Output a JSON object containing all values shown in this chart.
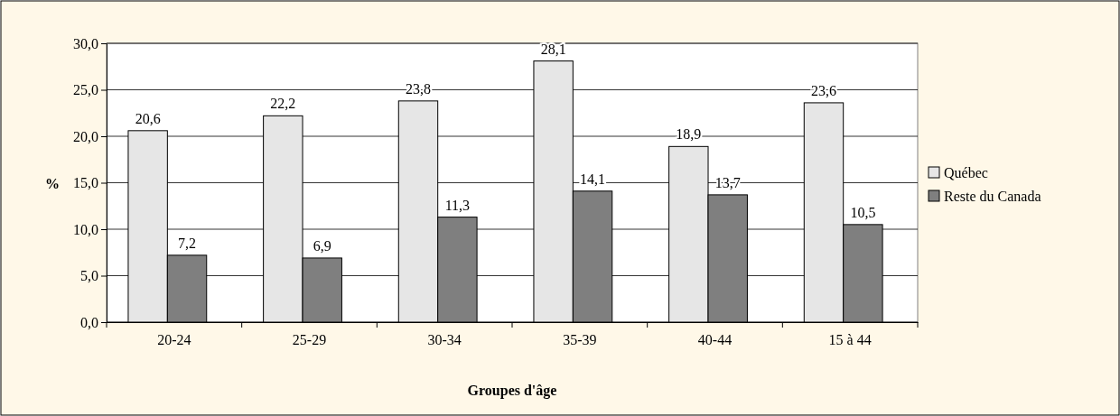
{
  "chart_data": {
    "type": "bar",
    "xlabel": "Groupes d'âge",
    "ylabel": "%",
    "categories": [
      "20-24",
      "25-29",
      "30-34",
      "35-39",
      "40-44",
      "15 à 44"
    ],
    "series": [
      {
        "name": "Québec",
        "color": "#e6e6e6",
        "values": [
          20.6,
          22.2,
          23.8,
          28.1,
          18.9,
          23.6
        ],
        "value_labels": [
          "20,6",
          "22,2",
          "23,8",
          "28,1",
          "18,9",
          "23,6"
        ]
      },
      {
        "name": "Reste du Canada",
        "color": "#7f7f7f",
        "values": [
          7.2,
          6.9,
          11.3,
          14.1,
          13.7,
          10.5
        ],
        "value_labels": [
          "7,2",
          "6,9",
          "11,3",
          "14,1",
          "13,7",
          "10,5"
        ]
      }
    ],
    "ylim": [
      0,
      30
    ],
    "yticks": [
      {
        "value": 0,
        "label": "0,0"
      },
      {
        "value": 5,
        "label": "5,0"
      },
      {
        "value": 10,
        "label": "10,0"
      },
      {
        "value": 15,
        "label": "15,0"
      },
      {
        "value": 20,
        "label": "20,0"
      },
      {
        "value": 25,
        "label": "25,0"
      },
      {
        "value": 30,
        "label": "30,0"
      }
    ],
    "grid": "y",
    "legend": "right"
  }
}
